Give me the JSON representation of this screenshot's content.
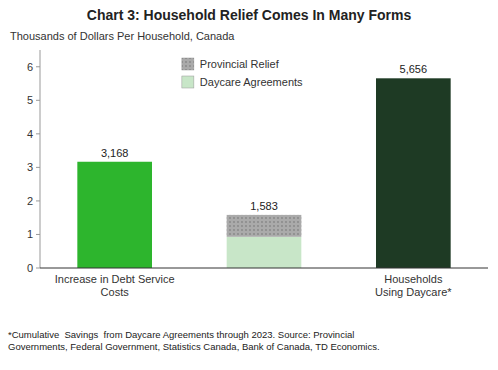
{
  "chart_data": {
    "type": "bar",
    "stacked": true,
    "title": "Chart 3: Household Relief Comes In Many Forms",
    "y_label": "Thousands of Dollars Per Household, Canada",
    "footnote": "*Cumulative  Savings  from Daycare Agreements through 2023. Source: Provincial\nGovernments, Federal Government, Statistics Canada, Bank of Canada, TD Economics.",
    "categories": [
      "Increase in Debt Service\nCosts",
      null,
      "Households\nUsing Daycare*"
    ],
    "series": [
      {
        "values": [
          3.168,
          null,
          5.656
        ],
        "colors": [
          "#2db52d",
          null,
          "#1e3a24"
        ],
        "value_labels": [
          "3,168",
          null,
          "5,656"
        ]
      },
      {
        "name": "Daycare Agreements",
        "color": "#c8e6c8",
        "values": [
          null,
          0.93,
          null
        ]
      },
      {
        "name": "Provincial Relief",
        "color": "#aaaaaa",
        "values": [
          null,
          0.653,
          null
        ]
      }
    ],
    "totals": [
      null,
      1.583,
      null
    ],
    "total_labels": [
      null,
      "1,583",
      null
    ],
    "data_labels": true,
    "ylim": [
      0,
      6.5
    ],
    "yticks": [
      0,
      1,
      2,
      3,
      4,
      5,
      6
    ],
    "grid": false,
    "legend": "upper center"
  }
}
